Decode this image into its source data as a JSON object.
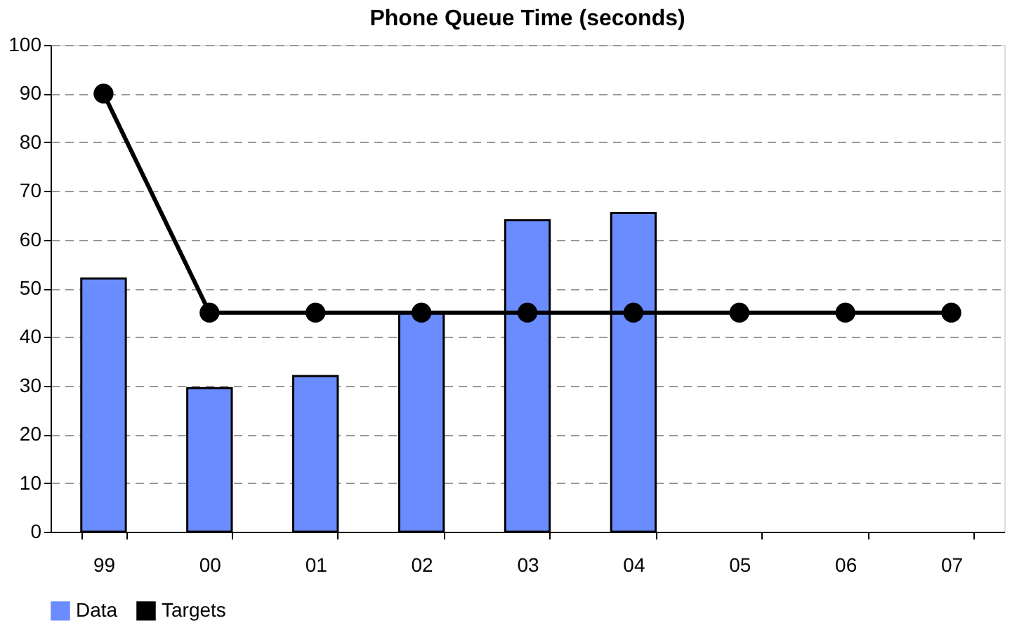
{
  "chart_data": {
    "type": "bar",
    "title": "Phone Queue Time (seconds)",
    "categories": [
      "99",
      "00",
      "01",
      "02",
      "03",
      "04",
      "05",
      "06",
      "07"
    ],
    "series": [
      {
        "name": "Data",
        "color": "#6b8cff",
        "values": [
          52,
          29.5,
          32,
          45,
          64,
          65.5,
          null,
          null,
          null
        ]
      },
      {
        "name": "Targets",
        "type": "line",
        "color": "#000000",
        "marker": "circle",
        "line_style": "solid",
        "values": [
          90,
          45,
          45,
          45,
          45,
          45,
          45,
          45,
          45
        ]
      }
    ],
    "ylim": [
      0,
      100
    ],
    "yticks": [
      0,
      10,
      20,
      30,
      40,
      50,
      60,
      70,
      80,
      90,
      100
    ],
    "grid": "y",
    "legend": "bottom"
  }
}
